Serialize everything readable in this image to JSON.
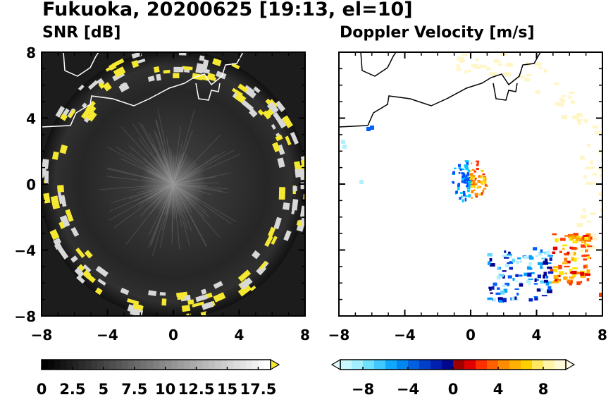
{
  "figure": {
    "title": "Fukuoka, 20200625 [19:13, el=10]"
  },
  "chart_data": [
    {
      "type": "heatmap",
      "title": "SNR [dB]",
      "xlim": [
        -8,
        8
      ],
      "ylim": [
        -8,
        8
      ],
      "xticks": [
        "−8",
        "−4",
        "0",
        "4",
        "8"
      ],
      "yticks": [
        "8",
        "4",
        "0",
        "−4",
        "−8"
      ],
      "colorbar": {
        "range": [
          0,
          18.5
        ],
        "ticks": [
          "0",
          "2.5",
          "5",
          "7.5",
          "10",
          "12.5",
          "15",
          "17.5"
        ],
        "extend": "max",
        "colormap": "black-to-white",
        "extend_color": "#f5e830"
      },
      "background": "radial noise ring of radius about 7.5 km; strong echoes in yellow"
    },
    {
      "type": "heatmap",
      "title": "Doppler Velocity [m/s]",
      "xlim": [
        -8,
        8
      ],
      "ylim": [
        -8,
        8
      ],
      "xticks": [
        "−8",
        "−4",
        "0",
        "4",
        "8"
      ],
      "yticks": [
        "8",
        "4",
        "0",
        "−4",
        "−8"
      ],
      "colorbar": {
        "range": [
          -10,
          10
        ],
        "ticks": [
          "−8",
          "−4",
          "0",
          "4",
          "8"
        ],
        "extend": "both",
        "colormap": "cyan-blue-red-yellow"
      }
    }
  ]
}
